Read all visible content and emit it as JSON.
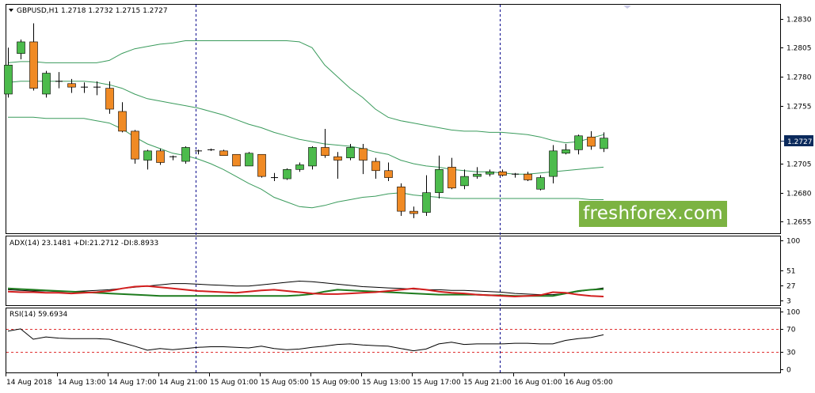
{
  "symbol_header": "GBPUSD,H1  1.2718 1.2732 1.2715 1.2727",
  "current_price": "1.2727",
  "watermark": "freshforex.com",
  "colors": {
    "bull": "#4cbb4c",
    "bear": "#f08a24",
    "band": "#3a9b5c",
    "adx": "#000000",
    "plus_di": "#1e7b1e",
    "minus_di": "#d21e1e",
    "rsi": "#000000",
    "level": "#e03030",
    "price_tag": "#0b2a5c"
  },
  "chart_data": [
    {
      "type": "candlestick",
      "title": "GBPUSD,H1",
      "y_ticks": [
        "1.2830",
        "1.2805",
        "1.2780",
        "1.2755",
        "1.2705",
        "1.2680",
        "1.2655"
      ],
      "ylim": [
        1.2645,
        1.2842
      ],
      "x_ticks": [
        "14 Aug 2018",
        "14 Aug 13:00",
        "14 Aug 17:00",
        "14 Aug 21:00",
        "15 Aug 01:00",
        "15 Aug 05:00",
        "15 Aug 09:00",
        "15 Aug 13:00",
        "15 Aug 17:00",
        "15 Aug 21:00",
        "16 Aug 01:00",
        "16 Aug 05:00"
      ],
      "ohlc": [
        [
          1.2765,
          1.2805,
          1.2762,
          1.279
        ],
        [
          1.28,
          1.2812,
          1.2795,
          1.281
        ],
        [
          1.281,
          1.2826,
          1.2768,
          1.277
        ],
        [
          1.2765,
          1.2785,
          1.2762,
          1.2783
        ],
        [
          1.2775,
          1.2784,
          1.277,
          1.2776
        ],
        [
          1.2774,
          1.2778,
          1.2766,
          1.2771
        ],
        [
          1.2771,
          1.2775,
          1.2766,
          1.2771
        ],
        [
          1.2771,
          1.2776,
          1.2764,
          1.277
        ],
        [
          1.277,
          1.2776,
          1.2748,
          1.2752
        ],
        [
          1.275,
          1.2758,
          1.2732,
          1.2733
        ],
        [
          1.2733,
          1.2734,
          1.2705,
          1.2709
        ],
        [
          1.2708,
          1.2717,
          1.27,
          1.2716
        ],
        [
          1.2716,
          1.2718,
          1.2704,
          1.2706
        ],
        [
          1.2711,
          1.2712,
          1.2708,
          1.271
        ],
        [
          1.2707,
          1.272,
          1.2705,
          1.2719
        ],
        [
          1.2716,
          1.2717,
          1.2713,
          1.2716
        ],
        [
          1.2717,
          1.2718,
          1.2716,
          1.2717
        ],
        [
          1.2716,
          1.2717,
          1.2712,
          1.2712
        ],
        [
          1.2713,
          1.2713,
          1.2703,
          1.2703
        ],
        [
          1.2703,
          1.2715,
          1.2703,
          1.2714
        ],
        [
          1.2713,
          1.2713,
          1.2693,
          1.2694
        ],
        [
          1.2693,
          1.2697,
          1.269,
          1.2692
        ],
        [
          1.2692,
          1.2701,
          1.2691,
          1.27
        ],
        [
          1.27,
          1.2706,
          1.2698,
          1.2704
        ],
        [
          1.2703,
          1.272,
          1.27,
          1.2719
        ],
        [
          1.2719,
          1.2735,
          1.271,
          1.2712
        ],
        [
          1.2711,
          1.2715,
          1.2692,
          1.2708
        ],
        [
          1.271,
          1.2722,
          1.2708,
          1.2719
        ],
        [
          1.2718,
          1.2722,
          1.2696,
          1.2708
        ],
        [
          1.2707,
          1.271,
          1.2692,
          1.2699
        ],
        [
          1.2699,
          1.2706,
          1.269,
          1.2693
        ],
        [
          1.2685,
          1.2688,
          1.266,
          1.2664
        ],
        [
          1.2664,
          1.2668,
          1.2658,
          1.2662
        ],
        [
          1.2663,
          1.2695,
          1.266,
          1.268
        ],
        [
          1.268,
          1.2712,
          1.2675,
          1.27
        ],
        [
          1.2702,
          1.271,
          1.2683,
          1.2684
        ],
        [
          1.2686,
          1.27,
          1.2683,
          1.2694
        ],
        [
          1.2694,
          1.2702,
          1.2692,
          1.2696
        ],
        [
          1.2696,
          1.27,
          1.2694,
          1.2698
        ],
        [
          1.2698,
          1.27,
          1.2694,
          1.2695
        ],
        [
          1.2696,
          1.2697,
          1.2693,
          1.2695
        ],
        [
          1.2696,
          1.2698,
          1.269,
          1.2691
        ],
        [
          1.2683,
          1.2695,
          1.2682,
          1.2693
        ],
        [
          1.2694,
          1.2721,
          1.2688,
          1.2716
        ],
        [
          1.2714,
          1.2722,
          1.2713,
          1.2717
        ],
        [
          1.2717,
          1.273,
          1.2713,
          1.2729
        ],
        [
          1.2728,
          1.2733,
          1.2717,
          1.272
        ],
        [
          1.2718,
          1.2732,
          1.2715,
          1.2727
        ]
      ],
      "bollinger_upper": [
        1.2792,
        1.2793,
        1.2793,
        1.2792,
        1.2792,
        1.2792,
        1.2792,
        1.2792,
        1.2794,
        1.28,
        1.2804,
        1.2806,
        1.2808,
        1.2809,
        1.2811,
        1.2811,
        1.2811,
        1.2811,
        1.2811,
        1.2811,
        1.2811,
        1.2811,
        1.2811,
        1.281,
        1.2805,
        1.279,
        1.278,
        1.277,
        1.2762,
        1.2752,
        1.2745,
        1.2742,
        1.274,
        1.2738,
        1.2736,
        1.2734,
        1.2733,
        1.2733,
        1.2732,
        1.2732,
        1.2731,
        1.273,
        1.2728,
        1.2725,
        1.2723,
        1.2724,
        1.2727,
        1.273
      ],
      "bollinger_middle": [
        1.2775,
        1.2776,
        1.2776,
        1.2776,
        1.2776,
        1.2776,
        1.2776,
        1.2775,
        1.2773,
        1.277,
        1.2765,
        1.2761,
        1.2759,
        1.2757,
        1.2755,
        1.2753,
        1.275,
        1.2747,
        1.2743,
        1.2739,
        1.2736,
        1.2732,
        1.2729,
        1.2726,
        1.2724,
        1.2722,
        1.2721,
        1.272,
        1.2718,
        1.2715,
        1.2713,
        1.2708,
        1.2705,
        1.2703,
        1.2702,
        1.27,
        1.2699,
        1.2698,
        1.2698,
        1.2697,
        1.2696,
        1.2696,
        1.2697,
        1.2698,
        1.2699,
        1.27,
        1.2701,
        1.2702
      ],
      "bollinger_lower": [
        1.2745,
        1.2745,
        1.2745,
        1.2744,
        1.2744,
        1.2744,
        1.2744,
        1.2742,
        1.274,
        1.2735,
        1.2728,
        1.2722,
        1.2718,
        1.2714,
        1.2712,
        1.2709,
        1.2705,
        1.27,
        1.2694,
        1.2688,
        1.2683,
        1.2676,
        1.2672,
        1.2668,
        1.2667,
        1.2669,
        1.2672,
        1.2674,
        1.2676,
        1.2677,
        1.2679,
        1.268,
        1.2678,
        1.2677,
        1.2676,
        1.2675,
        1.2675,
        1.2675,
        1.2675,
        1.2675,
        1.2675,
        1.2675,
        1.2675,
        1.2675,
        1.2675,
        1.2675,
        1.2674,
        1.2674
      ]
    },
    {
      "type": "line",
      "title": "ADX(14) 23.1481 +DI:21.2712 -DI:8.8933",
      "y_ticks": [
        "100",
        "51",
        "27",
        "3"
      ],
      "ylim": [
        0,
        100
      ],
      "series": [
        {
          "name": "ADX(14)",
          "values": [
            20,
            19,
            18,
            18,
            17,
            17,
            18,
            19,
            20,
            22,
            24,
            26,
            28,
            30,
            30,
            29,
            28,
            27,
            26,
            26,
            28,
            30,
            32,
            34,
            33,
            31,
            29,
            27,
            25,
            24,
            23,
            22,
            21,
            20,
            20,
            19,
            19,
            18,
            17,
            16,
            14,
            13,
            12,
            12,
            14,
            17,
            20,
            23
          ]
        },
        {
          "name": "+DI",
          "values": [
            22,
            21,
            20,
            19,
            18,
            17,
            16,
            15,
            14,
            13,
            12,
            11,
            10,
            10,
            10,
            10,
            10,
            10,
            10,
            10,
            10,
            10,
            10,
            11,
            13,
            17,
            20,
            19,
            18,
            17,
            16,
            15,
            14,
            13,
            12,
            12,
            12,
            12,
            11,
            11,
            10,
            10,
            10,
            10,
            14,
            18,
            20,
            21
          ]
        },
        {
          "name": "-DI",
          "values": [
            17,
            16,
            16,
            15,
            15,
            14,
            15,
            16,
            18,
            22,
            25,
            26,
            24,
            22,
            20,
            18,
            17,
            16,
            15,
            17,
            19,
            20,
            18,
            16,
            14,
            13,
            13,
            14,
            15,
            16,
            18,
            20,
            22,
            20,
            17,
            15,
            14,
            12,
            11,
            10,
            9,
            10,
            11,
            16,
            15,
            12,
            10,
            9
          ]
        }
      ]
    },
    {
      "type": "line",
      "title": "RSI(14) 59.6934",
      "y_ticks": [
        "100",
        "70",
        "30",
        "0"
      ],
      "ylim": [
        0,
        100
      ],
      "levels": [
        70,
        30
      ],
      "series": [
        {
          "name": "RSI(14)",
          "values": [
            66,
            70,
            52,
            56,
            54,
            53,
            53,
            53,
            52,
            46,
            40,
            33,
            36,
            34,
            36,
            38,
            39,
            39,
            38,
            37,
            40,
            36,
            34,
            35,
            38,
            40,
            43,
            44,
            42,
            41,
            40,
            36,
            32,
            35,
            44,
            47,
            43,
            44,
            44,
            44,
            45,
            45,
            44,
            44,
            50,
            53,
            55,
            59.7
          ]
        }
      ]
    }
  ]
}
